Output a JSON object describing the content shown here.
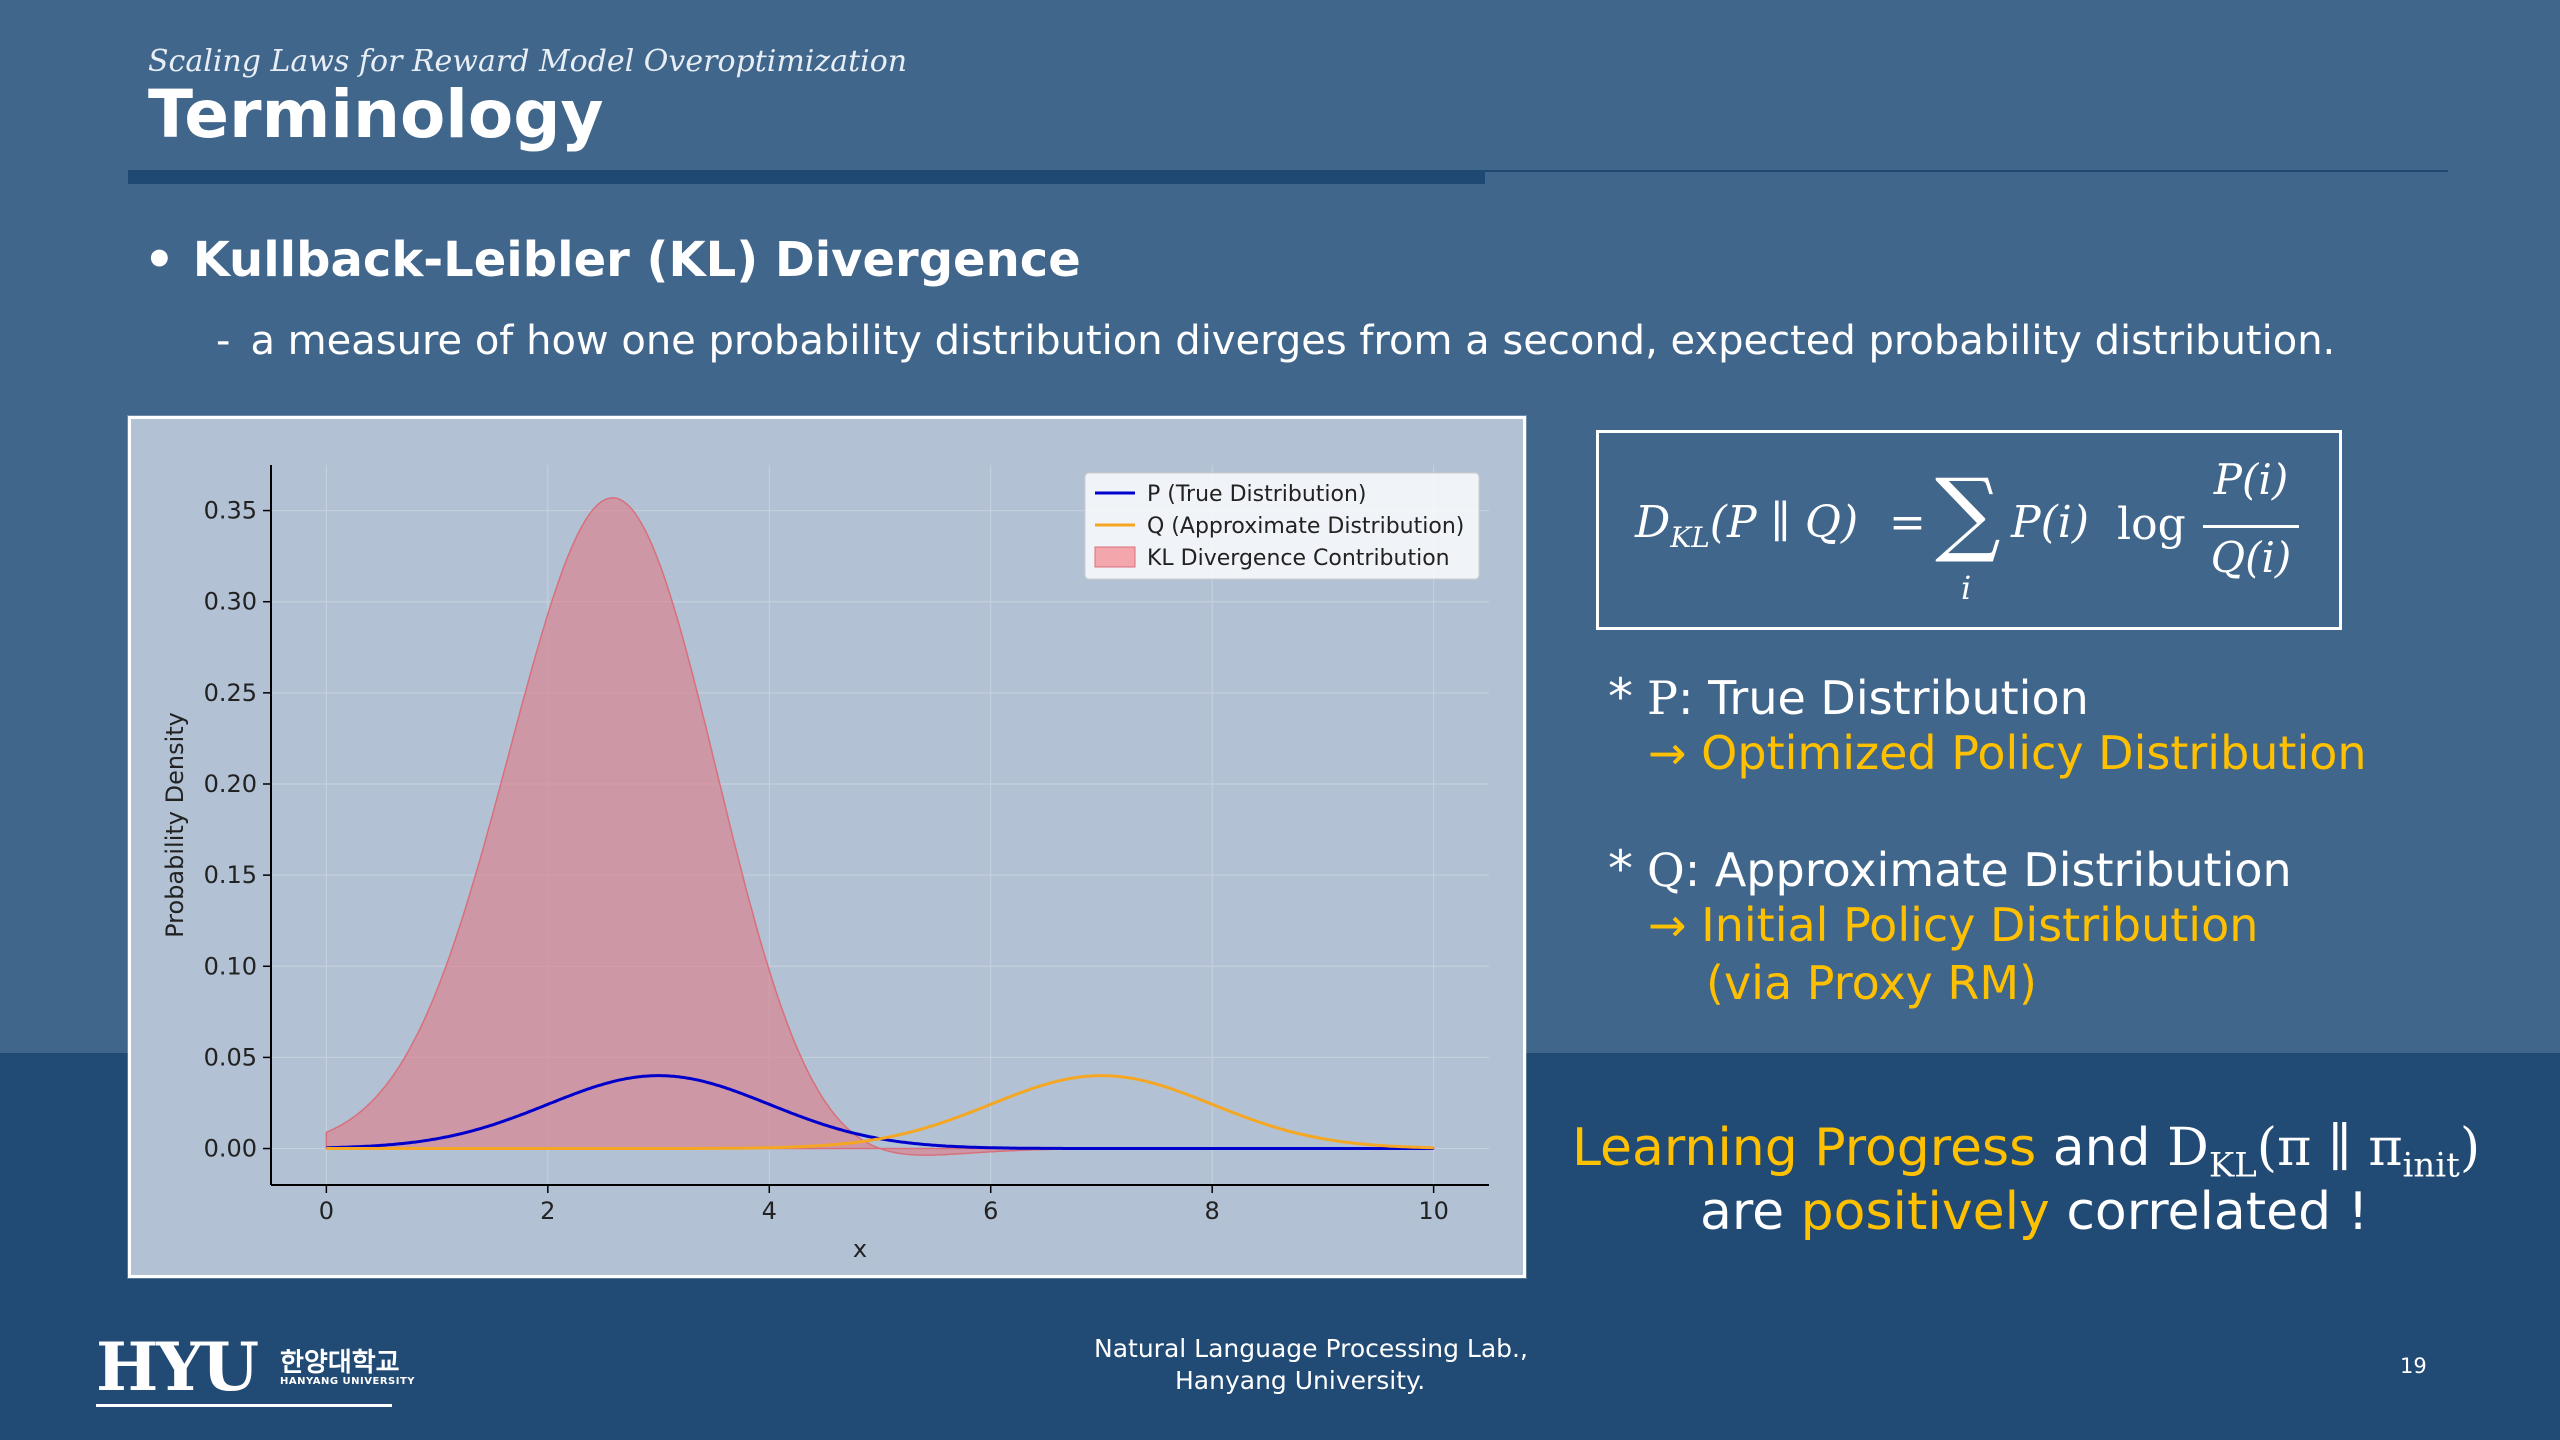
{
  "header": {
    "subtitle": "Scaling Laws for Reward Model Overoptimization",
    "title": "Terminology"
  },
  "bullet": {
    "marker": "•",
    "heading": "Kullback-Leibler (KL) Divergence",
    "dash": "-",
    "description": "a measure of how one probability distribution diverges from a second, expected probability distribution."
  },
  "chart_data": {
    "type": "area",
    "title": "",
    "xlabel": "x",
    "ylabel": "Probability Density",
    "xlim": [
      -0.5,
      10.5
    ],
    "ylim": [
      -0.02,
      0.375
    ],
    "xticks": [
      "0",
      "2",
      "4",
      "6",
      "8",
      "10"
    ],
    "yticks": [
      "0.00",
      "0.05",
      "0.10",
      "0.15",
      "0.20",
      "0.25",
      "0.30",
      "0.35"
    ],
    "grid": true,
    "legend_position": "top-right",
    "series": [
      {
        "name": "P (True Distribution)",
        "kind": "line",
        "color": "#0000cc",
        "distribution": "normal",
        "mean": 3,
        "std": 1,
        "scale": 0.1
      },
      {
        "name": "Q (Approximate Distribution)",
        "kind": "line",
        "color": "#f5a623",
        "distribution": "normal",
        "mean": 7,
        "std": 1,
        "scale": 0.1
      },
      {
        "name": "KL Divergence Contribution",
        "kind": "fill",
        "color": "#f4a6ad",
        "definition": "P(x) * log(P(x)/Q(x)), scaled",
        "peak_x": 2.6,
        "peak_y": 0.357,
        "min_y": -0.004
      }
    ],
    "legend": [
      "P (True Distribution)",
      "Q (Approximate Distribution)",
      "KL Divergence Contribution"
    ]
  },
  "formula": {
    "lhs_D": "D",
    "lhs_sub": "KL",
    "lhs_args": "(P ∥ Q)",
    "equals": "=",
    "sigma": "∑",
    "sigma_sub": "i",
    "term": "P(i)",
    "log": "log",
    "numerator": "P(i)",
    "denominator": "Q(i)"
  },
  "definitions": {
    "p_star": "*",
    "p_symbol": "P",
    "p_label": ": True Distribution",
    "p_arrow": "→ Optimized Policy Distribution",
    "q_star": "*",
    "q_symbol": "Q",
    "q_label": ": Approximate Distribution",
    "q_arrow": "→ Initial Policy Distribution",
    "q_note": "(via Proxy RM)"
  },
  "conclusion": {
    "highlight1": "Learning Progress",
    "and": "and",
    "math_D": "D",
    "math_sub": "KL",
    "math_args": "(π ∥ π",
    "math_sub2": "init",
    "math_close": ")",
    "are": "are",
    "highlight2": "positively",
    "tail": "correlated !"
  },
  "footer": {
    "logo_text": "HYU",
    "logo_korean": "한양대학교",
    "logo_english": "HANYANG UNIVERSITY",
    "lab_line1": "Natural Language Processing Lab.,",
    "lab_line2": "Hanyang University.",
    "page_number": "19"
  },
  "colors": {
    "background": "#40668c",
    "band": "#214a74",
    "accent_yellow": "#ffc000",
    "chart_panel": "#b2c2d4"
  }
}
